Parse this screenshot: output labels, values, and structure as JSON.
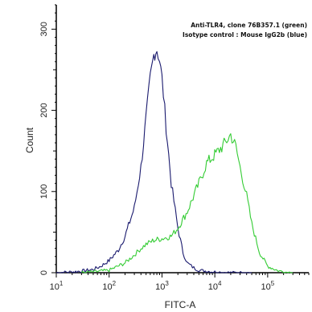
{
  "chart_data": {
    "type": "line",
    "title": "",
    "xlabel": "FITC-A",
    "ylabel": "Count",
    "xscale": "log",
    "xlim": [
      10,
      600000
    ],
    "ylim": [
      0,
      330
    ],
    "grid": false,
    "x_ticks": [
      {
        "value": 10,
        "base": "10",
        "exp": "1"
      },
      {
        "value": 100,
        "base": "10",
        "exp": "2"
      },
      {
        "value": 1000,
        "base": "10",
        "exp": "3"
      },
      {
        "value": 10000,
        "base": "10",
        "exp": "4"
      },
      {
        "value": 100000,
        "base": "10",
        "exp": "5"
      }
    ],
    "y_ticks": [
      0,
      100,
      200,
      300
    ],
    "legend": {
      "position": "top-right",
      "lines": [
        "Anti-TLR4, clone 76B357.1 (green)",
        "Isotype control : Mouse IgG2b (blue)"
      ]
    },
    "series": [
      {
        "color": "#1a1a6e",
        "points": [
          [
            10,
            0
          ],
          [
            20,
            1
          ],
          [
            30,
            2
          ],
          [
            50,
            4
          ],
          [
            70,
            8
          ],
          [
            100,
            15
          ],
          [
            150,
            28
          ],
          [
            200,
            45
          ],
          [
            300,
            80
          ],
          [
            400,
            130
          ],
          [
            500,
            190
          ],
          [
            600,
            240
          ],
          [
            700,
            268
          ],
          [
            800,
            275
          ],
          [
            900,
            262
          ],
          [
            1000,
            240
          ],
          [
            1200,
            180
          ],
          [
            1500,
            110
          ],
          [
            2000,
            55
          ],
          [
            2500,
            25
          ],
          [
            3000,
            12
          ],
          [
            4000,
            6
          ],
          [
            5000,
            3
          ],
          [
            7000,
            2
          ],
          [
            10000,
            1
          ],
          [
            20000,
            0
          ],
          [
            50000,
            0
          ]
        ]
      },
      {
        "color": "#33cc33",
        "points": [
          [
            30,
            0
          ],
          [
            50,
            1
          ],
          [
            100,
            3
          ],
          [
            200,
            12
          ],
          [
            300,
            22
          ],
          [
            400,
            30
          ],
          [
            500,
            35
          ],
          [
            700,
            40
          ],
          [
            1000,
            42
          ],
          [
            1500,
            45
          ],
          [
            2000,
            55
          ],
          [
            3000,
            75
          ],
          [
            5000,
            110
          ],
          [
            7000,
            135
          ],
          [
            10000,
            145
          ],
          [
            15000,
            158
          ],
          [
            20000,
            170
          ],
          [
            25000,
            155
          ],
          [
            30000,
            130
          ],
          [
            40000,
            95
          ],
          [
            50000,
            60
          ],
          [
            70000,
            25
          ],
          [
            100000,
            8
          ],
          [
            150000,
            3
          ],
          [
            200000,
            1
          ],
          [
            300000,
            0
          ]
        ]
      }
    ]
  }
}
